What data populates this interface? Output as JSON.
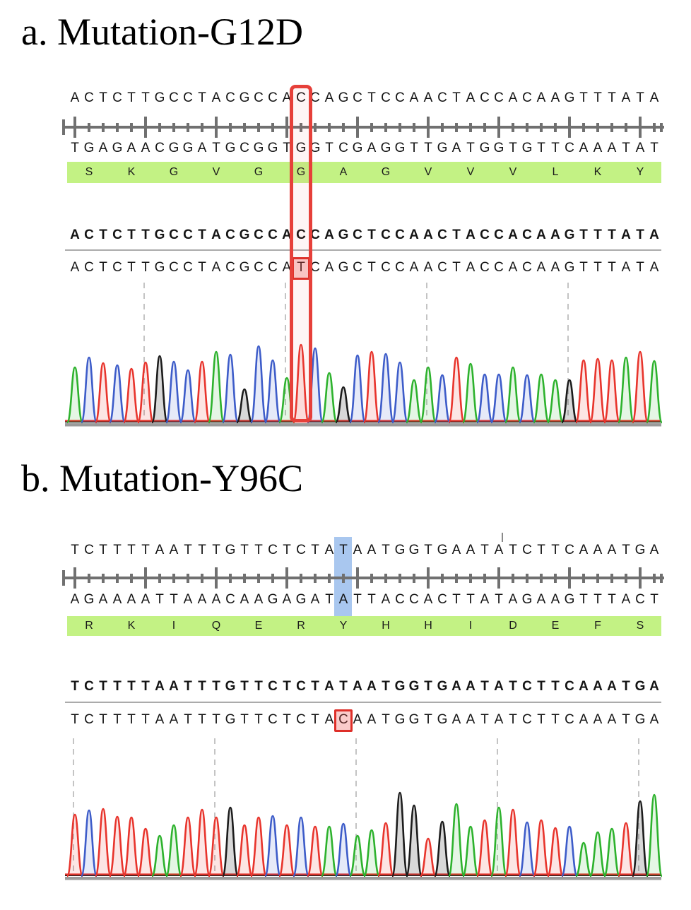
{
  "figure": {
    "type": "sanger-sequencing-figure"
  },
  "colors": {
    "trace": {
      "A": "#2db22d",
      "C": "#3d5cc9",
      "G": "#1c1c1c",
      "T": "#e8342c"
    },
    "trace_fill": {
      "A": "rgba(45,178,45,0.12)",
      "C": "rgba(61,92,201,0.13)",
      "G": "rgba(60,60,60,0.20)",
      "T": "rgba(232,52,44,0.13)"
    },
    "accent_red": "#e6403a",
    "highlight_blue": "#a9c7ef",
    "amino_green": "#c3f284",
    "ruler_gray": "#707070",
    "dashed_gray": "#c4c4c4",
    "axis_gray": "#9a9a9a"
  },
  "panels": [
    {
      "id": "a",
      "title": "a. Mutation-G12D",
      "reference_top": "ACTCTTGCCTACGCCACCAGCTCCAACTACCACAAGTTTATA",
      "reference_bottom": "TGAGAACGGATGCGGTGGTCGAGGTTGATGGTGTTCAAATAT",
      "amino_acids": [
        "S",
        "K",
        "G",
        "V",
        "G",
        "G",
        "A",
        "G",
        "V",
        "V",
        "V",
        "L",
        "K",
        "Y"
      ],
      "reference_bold": "ACTCTTGCCTACGCCACCAGCTCCAACTACCACAAGTTTATA",
      "query": "ACTCTTGCCTACGCCATCAGCTCCAACTACCACAAGTTTATA",
      "mutation_column": 17,
      "ref_base": "C",
      "mut_base": "T",
      "highlight_style": "red-rect",
      "dashed_lines_at": [
        6,
        16,
        26,
        36
      ],
      "peak_heights": [
        78,
        92,
        84,
        81,
        76,
        85,
        94,
        86,
        74,
        86,
        100,
        96,
        47,
        108,
        88,
        63,
        110,
        105,
        70,
        50,
        95,
        100,
        97,
        85,
        60,
        78,
        67,
        92,
        83,
        68,
        68,
        78,
        67,
        68,
        60,
        60,
        88,
        90,
        88,
        92,
        100,
        87
      ]
    },
    {
      "id": "b",
      "title": "b. Mutation-Y96C",
      "reference_top": "TCTTTTAATTTGTTCTCTATAATGGTGAATATCTTCAAATGA",
      "reference_bottom": "AGAAAATTAAACAAGAGATATTACCACTTATAGAAGTTTACT",
      "amino_acids": [
        "R",
        "K",
        "I",
        "Q",
        "E",
        "R",
        "Y",
        "H",
        "H",
        "I",
        "D",
        "E",
        "F",
        "S"
      ],
      "reference_bold": "TCTTTTAATTTGTTCTCTATAATGGTGAATATCTTCAAATGA",
      "query": "TCTTTTAATTTGTTCTCTACAATGGTGAATATCTTCAAATGA",
      "mutation_column": 20,
      "ref_base": "T",
      "mut_base": "C",
      "highlight_style": "blue-band",
      "dashed_lines_at": [
        1,
        11,
        21,
        31,
        41
      ],
      "peak_heights": [
        87,
        93,
        95,
        84,
        83,
        67,
        57,
        72,
        83,
        94,
        83,
        97,
        72,
        83,
        85,
        72,
        83,
        70,
        70,
        74,
        57,
        65,
        75,
        118,
        100,
        53,
        77,
        102,
        70,
        79,
        97,
        94,
        76,
        79,
        68,
        70,
        47,
        62,
        67,
        75,
        106,
        115
      ]
    }
  ]
}
